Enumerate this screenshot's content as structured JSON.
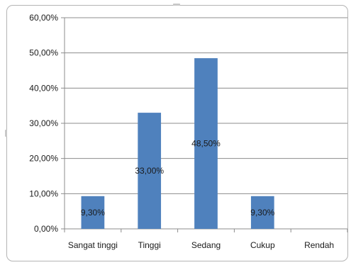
{
  "chart_data": {
    "type": "bar",
    "categories": [
      "Sangat tinggi",
      "Tinggi",
      "Sedang",
      "Cukup",
      "Rendah"
    ],
    "values": [
      9.3,
      33.0,
      48.5,
      9.3,
      0
    ],
    "data_labels": [
      "9,30%",
      "33,00%",
      "48,50%",
      "9,30%",
      ""
    ],
    "ylim": [
      0,
      60
    ],
    "yticks": [
      0,
      10,
      20,
      30,
      40,
      50,
      60
    ],
    "ytick_labels": [
      "0,00%",
      "10,00%",
      "20,00%",
      "30,00%",
      "40,00%",
      "50,00%",
      "60,00%"
    ],
    "grid": true,
    "bar_color": "#4f81bd",
    "title": "",
    "xlabel": "",
    "ylabel": ""
  }
}
